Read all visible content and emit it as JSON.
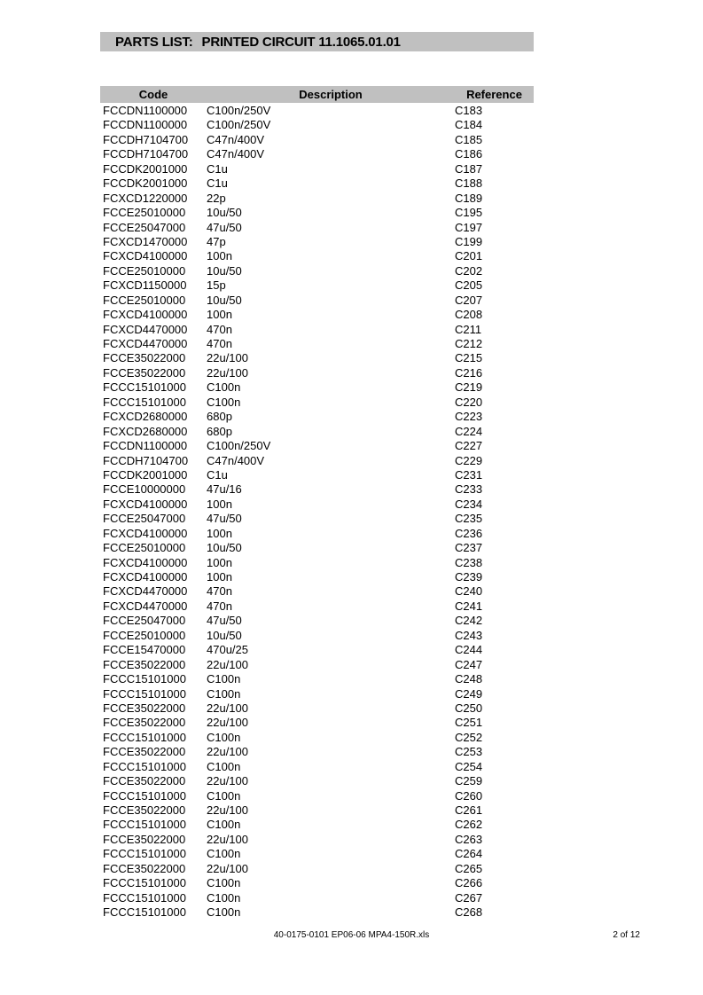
{
  "title_bar": {
    "prefix": "PARTS LIST:",
    "main": "PRINTED CIRCUIT 11.1065.01.01"
  },
  "table": {
    "columns": [
      "Code",
      "Description",
      "Reference"
    ],
    "rows": [
      {
        "code": "FCCDN1100000",
        "desc": "C100n/250V",
        "ref": "C183"
      },
      {
        "code": "FCCDN1100000",
        "desc": "C100n/250V",
        "ref": "C184"
      },
      {
        "code": "FCCDH7104700",
        "desc": "C47n/400V",
        "ref": "C185"
      },
      {
        "code": "FCCDH7104700",
        "desc": "C47n/400V",
        "ref": "C186"
      },
      {
        "code": "FCCDK2001000",
        "desc": "C1u",
        "ref": "C187"
      },
      {
        "code": "FCCDK2001000",
        "desc": "C1u",
        "ref": "C188"
      },
      {
        "code": "FCXCD1220000",
        "desc": "22p",
        "ref": "C189"
      },
      {
        "code": "FCCE25010000",
        "desc": "10u/50",
        "ref": "C195"
      },
      {
        "code": "FCCE25047000",
        "desc": "47u/50",
        "ref": "C197"
      },
      {
        "code": "FCXCD1470000",
        "desc": "47p",
        "ref": "C199"
      },
      {
        "code": "FCXCD4100000",
        "desc": "100n",
        "ref": "C201"
      },
      {
        "code": "FCCE25010000",
        "desc": "10u/50",
        "ref": "C202"
      },
      {
        "code": "FCXCD1150000",
        "desc": "15p",
        "ref": "C205"
      },
      {
        "code": "FCCE25010000",
        "desc": "10u/50",
        "ref": "C207"
      },
      {
        "code": "FCXCD4100000",
        "desc": "100n",
        "ref": "C208"
      },
      {
        "code": "FCXCD4470000",
        "desc": "470n",
        "ref": "C211"
      },
      {
        "code": "FCXCD4470000",
        "desc": "470n",
        "ref": "C212"
      },
      {
        "code": "FCCE35022000",
        "desc": "22u/100",
        "ref": "C215"
      },
      {
        "code": "FCCE35022000",
        "desc": "22u/100",
        "ref": "C216"
      },
      {
        "code": "FCCC15101000",
        "desc": "C100n",
        "ref": "C219"
      },
      {
        "code": "FCCC15101000",
        "desc": "C100n",
        "ref": "C220"
      },
      {
        "code": "FCXCD2680000",
        "desc": "680p",
        "ref": "C223"
      },
      {
        "code": "FCXCD2680000",
        "desc": "680p",
        "ref": "C224"
      },
      {
        "code": "FCCDN1100000",
        "desc": "C100n/250V",
        "ref": "C227"
      },
      {
        "code": "FCCDH7104700",
        "desc": "C47n/400V",
        "ref": "C229"
      },
      {
        "code": "FCCDK2001000",
        "desc": "C1u",
        "ref": "C231"
      },
      {
        "code": "FCCE10000000",
        "desc": "47u/16",
        "ref": "C233"
      },
      {
        "code": "FCXCD4100000",
        "desc": "100n",
        "ref": "C234"
      },
      {
        "code": "FCCE25047000",
        "desc": "47u/50",
        "ref": "C235"
      },
      {
        "code": "FCXCD4100000",
        "desc": "100n",
        "ref": "C236"
      },
      {
        "code": "FCCE25010000",
        "desc": "10u/50",
        "ref": "C237"
      },
      {
        "code": "FCXCD4100000",
        "desc": "100n",
        "ref": "C238"
      },
      {
        "code": "FCXCD4100000",
        "desc": "100n",
        "ref": "C239"
      },
      {
        "code": "FCXCD4470000",
        "desc": "470n",
        "ref": "C240"
      },
      {
        "code": "FCXCD4470000",
        "desc": "470n",
        "ref": "C241"
      },
      {
        "code": "FCCE25047000",
        "desc": "47u/50",
        "ref": "C242"
      },
      {
        "code": "FCCE25010000",
        "desc": "10u/50",
        "ref": "C243"
      },
      {
        "code": "FCCE15470000",
        "desc": "470u/25",
        "ref": "C244"
      },
      {
        "code": "FCCE35022000",
        "desc": "22u/100",
        "ref": "C247"
      },
      {
        "code": "FCCC15101000",
        "desc": "C100n",
        "ref": "C248"
      },
      {
        "code": "FCCC15101000",
        "desc": "C100n",
        "ref": "C249"
      },
      {
        "code": "FCCE35022000",
        "desc": "22u/100",
        "ref": "C250"
      },
      {
        "code": "FCCE35022000",
        "desc": "22u/100",
        "ref": "C251"
      },
      {
        "code": "FCCC15101000",
        "desc": "C100n",
        "ref": "C252"
      },
      {
        "code": "FCCE35022000",
        "desc": "22u/100",
        "ref": "C253"
      },
      {
        "code": "FCCC15101000",
        "desc": "C100n",
        "ref": "C254"
      },
      {
        "code": "FCCE35022000",
        "desc": "22u/100",
        "ref": "C259"
      },
      {
        "code": "FCCC15101000",
        "desc": "C100n",
        "ref": "C260"
      },
      {
        "code": "FCCE35022000",
        "desc": "22u/100",
        "ref": "C261"
      },
      {
        "code": "FCCC15101000",
        "desc": "C100n",
        "ref": "C262"
      },
      {
        "code": "FCCE35022000",
        "desc": "22u/100",
        "ref": "C263"
      },
      {
        "code": "FCCC15101000",
        "desc": "C100n",
        "ref": "C264"
      },
      {
        "code": "FCCE35022000",
        "desc": "22u/100",
        "ref": "C265"
      },
      {
        "code": "FCCC15101000",
        "desc": "C100n",
        "ref": "C266"
      },
      {
        "code": "FCCC15101000",
        "desc": "C100n",
        "ref": "C267"
      },
      {
        "code": "FCCC15101000",
        "desc": "C100n",
        "ref": "C268"
      }
    ]
  },
  "footer": {
    "filename": "40-0175-0101 EP06-06 MPA4-150R.xls",
    "page_indicator": "2 of 12"
  },
  "colors": {
    "band_bg": "#c0c0c0",
    "text": "#000000",
    "page_bg": "#ffffff"
  }
}
